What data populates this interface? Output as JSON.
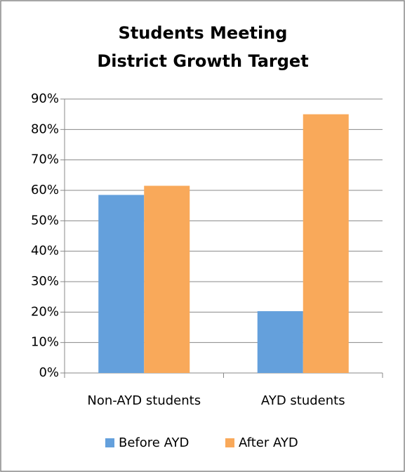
{
  "chart_data": {
    "type": "bar",
    "title": [
      "Students Meeting",
      "District Growth Target"
    ],
    "categories": [
      "Non-AYD students",
      "AYD students"
    ],
    "series": [
      {
        "name": "Before AYD",
        "color": "#64a0dc",
        "values": [
          58.5,
          20.3
        ]
      },
      {
        "name": "After AYD",
        "color": "#f9a95a",
        "values": [
          61.5,
          85
        ]
      }
    ],
    "ylim": [
      0,
      90
    ],
    "yticks": [
      {
        "value": 0,
        "label": "0%"
      },
      {
        "value": 10,
        "label": "10%"
      },
      {
        "value": 20,
        "label": "20%"
      },
      {
        "value": 30,
        "label": "30%"
      },
      {
        "value": 40,
        "label": "40%"
      },
      {
        "value": 50,
        "label": "50%"
      },
      {
        "value": 60,
        "label": "60%"
      },
      {
        "value": 70,
        "label": "70%"
      },
      {
        "value": 80,
        "label": "80%"
      },
      {
        "value": 90,
        "label": "90%"
      }
    ],
    "grid": true,
    "legend": "bottom"
  }
}
